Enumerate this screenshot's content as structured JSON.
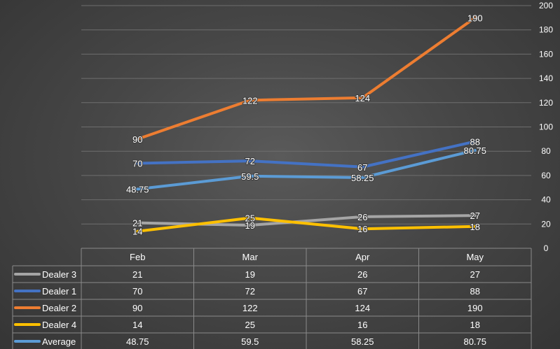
{
  "chart_data": {
    "type": "line",
    "categories": [
      "Feb",
      "Mar",
      "Apr",
      "May"
    ],
    "series": [
      {
        "name": "Dealer 3",
        "color": "#a5a5a5",
        "values": [
          21,
          19,
          26,
          27
        ]
      },
      {
        "name": "Dealer 1",
        "color": "#4472c4",
        "values": [
          70,
          72,
          67,
          88
        ]
      },
      {
        "name": "Dealer 2",
        "color": "#ed7d31",
        "values": [
          90,
          122,
          124,
          190
        ]
      },
      {
        "name": "Dealer 4",
        "color": "#ffc000",
        "values": [
          14,
          25,
          16,
          18
        ]
      },
      {
        "name": "Average",
        "color": "#5b9bd5",
        "values": [
          "48.75",
          "59.5",
          "58.25",
          "80.75"
        ]
      }
    ],
    "ylim": [
      0,
      200
    ],
    "yticks": [
      0,
      20,
      40,
      60,
      80,
      100,
      120,
      140,
      160,
      180,
      200
    ],
    "y_axis_position": "right",
    "grid": true,
    "data_table": true,
    "legend": "data-table-keys"
  }
}
